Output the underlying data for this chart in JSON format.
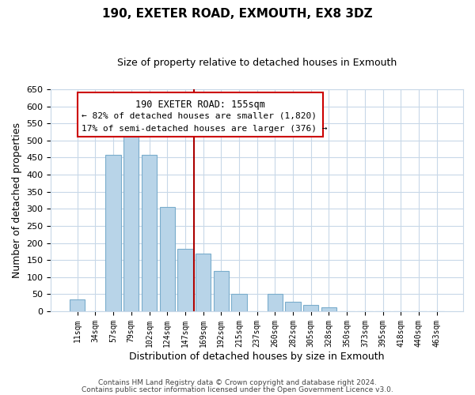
{
  "title": "190, EXETER ROAD, EXMOUTH, EX8 3DZ",
  "subtitle": "Size of property relative to detached houses in Exmouth",
  "xlabel": "Distribution of detached houses by size in Exmouth",
  "ylabel": "Number of detached properties",
  "bin_labels": [
    "11sqm",
    "34sqm",
    "57sqm",
    "79sqm",
    "102sqm",
    "124sqm",
    "147sqm",
    "169sqm",
    "192sqm",
    "215sqm",
    "237sqm",
    "260sqm",
    "282sqm",
    "305sqm",
    "328sqm",
    "350sqm",
    "373sqm",
    "395sqm",
    "418sqm",
    "440sqm",
    "463sqm"
  ],
  "bar_heights": [
    35,
    0,
    458,
    515,
    458,
    305,
    182,
    170,
    118,
    50,
    0,
    50,
    28,
    18,
    12,
    0,
    0,
    0,
    0,
    0,
    0
  ],
  "bar_color": "#b8d4e8",
  "bar_edge_color": "#7aadcc",
  "vline_color": "#aa0000",
  "ylim": [
    0,
    650
  ],
  "yticks": [
    0,
    50,
    100,
    150,
    200,
    250,
    300,
    350,
    400,
    450,
    500,
    550,
    600,
    650
  ],
  "annotation_title": "190 EXETER ROAD: 155sqm",
  "annotation_line1": "← 82% of detached houses are smaller (1,820)",
  "annotation_line2": "17% of semi-detached houses are larger (376) →",
  "annotation_box_color": "#ffffff",
  "annotation_box_edge": "#cc0000",
  "footer_line1": "Contains HM Land Registry data © Crown copyright and database right 2024.",
  "footer_line2": "Contains public sector information licensed under the Open Government Licence v3.0.",
  "background_color": "#ffffff",
  "grid_color": "#c8d8e8"
}
